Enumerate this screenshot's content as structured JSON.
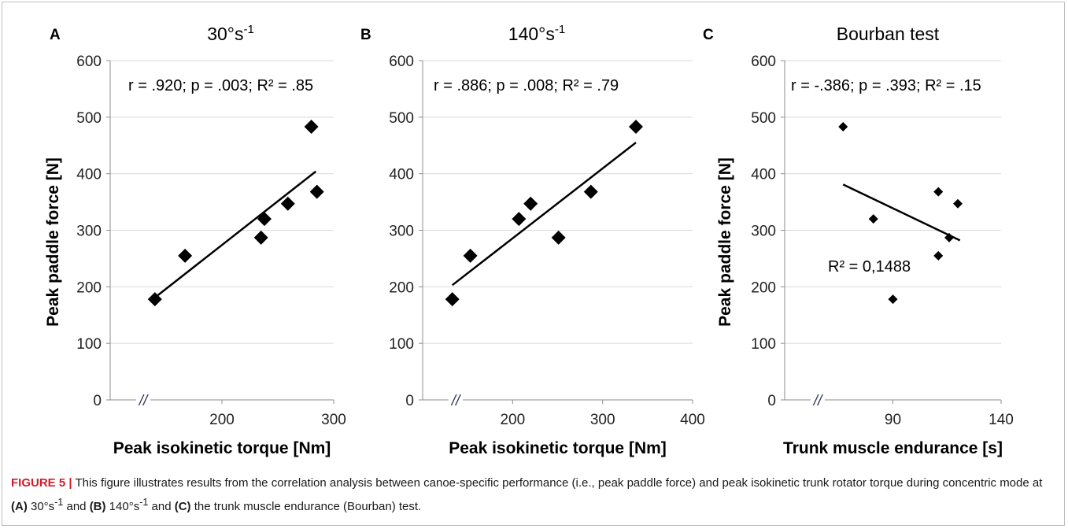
{
  "chart_data": [
    {
      "type": "scatter",
      "panel_label": "A",
      "title": "30°s-1",
      "title_base": "30°s",
      "title_sup": "-1",
      "xlabel": "Peak isokinetic torque [Nm]",
      "ylabel": "Peak paddle force [N]",
      "xlim": [
        100,
        300
      ],
      "ylim": [
        0,
        600
      ],
      "xticks": [
        200,
        300
      ],
      "yticks": [
        0,
        100,
        200,
        300,
        400,
        500,
        600
      ],
      "axis_break": "//",
      "stats": "r = .920; p = .003; R² = .85",
      "trendline_label": "",
      "marker": "diamond",
      "trendline": {
        "x": [
          140,
          284
        ],
        "y": [
          181,
          404
        ]
      },
      "points": [
        {
          "x": 140,
          "y": 178
        },
        {
          "x": 167,
          "y": 255
        },
        {
          "x": 235,
          "y": 287
        },
        {
          "x": 238,
          "y": 320
        },
        {
          "x": 259,
          "y": 347
        },
        {
          "x": 280,
          "y": 483
        },
        {
          "x": 285,
          "y": 368
        }
      ]
    },
    {
      "type": "scatter",
      "panel_label": "B",
      "title": "140°s-1",
      "title_base": "140°s",
      "title_sup": "-1",
      "xlabel": "Peak isokinetic torque [Nm]",
      "ylabel": "",
      "xlim": [
        100,
        400
      ],
      "ylim": [
        0,
        600
      ],
      "xticks": [
        200,
        300,
        400
      ],
      "yticks": [
        0,
        100,
        200,
        300,
        400,
        500,
        600
      ],
      "axis_break": "//",
      "stats": "r = .886; p = .008; R² = .79",
      "trendline_label": "",
      "marker": "diamond",
      "trendline": {
        "x": [
          133,
          337
        ],
        "y": [
          203,
          455
        ]
      },
      "points": [
        {
          "x": 133,
          "y": 178
        },
        {
          "x": 153,
          "y": 255
        },
        {
          "x": 207,
          "y": 320
        },
        {
          "x": 220,
          "y": 347
        },
        {
          "x": 251,
          "y": 287
        },
        {
          "x": 287,
          "y": 368
        },
        {
          "x": 337,
          "y": 483
        }
      ]
    },
    {
      "type": "scatter",
      "panel_label": "C",
      "title": "Bourban test",
      "title_base": "Bourban test",
      "title_sup": "",
      "xlabel": "Trunk muscle endurance [s]",
      "ylabel": "Peak paddle force [N]",
      "xlim": [
        40,
        140
      ],
      "ylim": [
        0,
        600
      ],
      "xticks": [
        90,
        140
      ],
      "yticks": [
        0,
        100,
        200,
        300,
        400,
        500,
        600
      ],
      "axis_break": "//",
      "stats": "r = -.386; p = .393; R² = .15",
      "trendline_label": "R² = 0,1488",
      "marker": "diamond-small",
      "trendline": {
        "x": [
          67,
          121
        ],
        "y": [
          381,
          282
        ]
      },
      "points": [
        {
          "x": 67,
          "y": 483
        },
        {
          "x": 81,
          "y": 320
        },
        {
          "x": 90,
          "y": 178
        },
        {
          "x": 111,
          "y": 368
        },
        {
          "x": 111,
          "y": 255
        },
        {
          "x": 116,
          "y": 287
        },
        {
          "x": 120,
          "y": 347
        }
      ]
    }
  ],
  "caption": {
    "figure_label": "FIGURE 5 |",
    "text_1": " This figure illustrates results from the correlation analysis between canoe-specific performance (i.e., peak paddle force) and peak isokinetic trunk rotator torque during concentric mode at ",
    "label_a": "(A)",
    "text_2": " 30°s",
    "sup_1": "-1",
    "text_3": " and ",
    "label_b": "(B)",
    "text_4": " 140°s",
    "sup_2": "-1",
    "text_5": " and ",
    "label_c": "(C)",
    "text_6": " the trunk muscle endurance (Bourban) test."
  }
}
